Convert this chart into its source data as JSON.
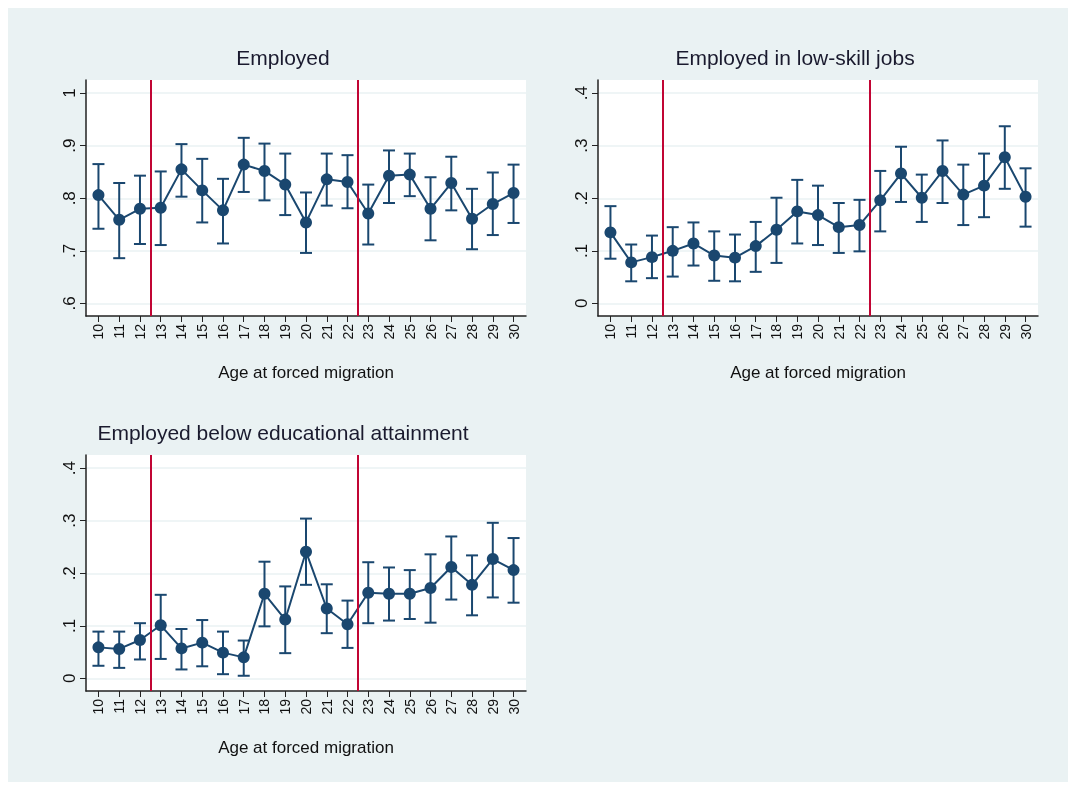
{
  "chart_data": [
    {
      "type": "line",
      "title": "Employed",
      "xlabel": "Age at forced migration",
      "color": "#1a476f",
      "marker": "circle",
      "grid": "y",
      "x": [
        10,
        11,
        12,
        13,
        14,
        15,
        16,
        17,
        18,
        19,
        20,
        21,
        22,
        23,
        24,
        25,
        26,
        27,
        28,
        29,
        30
      ],
      "values": [
        0.806,
        0.759,
        0.78,
        0.782,
        0.855,
        0.815,
        0.777,
        0.864,
        0.852,
        0.826,
        0.754,
        0.836,
        0.831,
        0.771,
        0.843,
        0.845,
        0.78,
        0.829,
        0.761,
        0.789,
        0.81
      ],
      "errors": [
        [
          0.742,
          0.865
        ],
        [
          0.686,
          0.829
        ],
        [
          0.713,
          0.843
        ],
        [
          0.711,
          0.851
        ],
        [
          0.803,
          0.903
        ],
        [
          0.754,
          0.875
        ],
        [
          0.714,
          0.837
        ],
        [
          0.812,
          0.915
        ],
        [
          0.796,
          0.904
        ],
        [
          0.768,
          0.885
        ],
        [
          0.696,
          0.811
        ],
        [
          0.786,
          0.885
        ],
        [
          0.781,
          0.882
        ],
        [
          0.712,
          0.826
        ],
        [
          0.791,
          0.891
        ],
        [
          0.804,
          0.885
        ],
        [
          0.72,
          0.84
        ],
        [
          0.777,
          0.879
        ],
        [
          0.703,
          0.818
        ],
        [
          0.73,
          0.849
        ],
        [
          0.753,
          0.864
        ]
      ],
      "ref_lines": [
        {
          "axis": "x",
          "value": 12.5,
          "color": "#c10534"
        },
        {
          "axis": "x",
          "value": 22.5,
          "color": "#c10534"
        }
      ],
      "xlim": [
        9.4,
        30.6
      ],
      "xticks": [
        10,
        11,
        12,
        13,
        14,
        15,
        16,
        17,
        18,
        19,
        20,
        21,
        22,
        23,
        24,
        25,
        26,
        27,
        28,
        29,
        30
      ],
      "ylim": [
        0.576,
        1.025
      ],
      "yticks": [
        {
          "value": 0.6,
          "label": ".6"
        },
        {
          "value": 0.7,
          "label": ".7"
        },
        {
          "value": 0.8,
          "label": ".8"
        },
        {
          "value": 0.9,
          "label": ".9"
        },
        {
          "value": 1,
          "label": "1"
        }
      ]
    },
    {
      "type": "line",
      "title": "Employed in low-skill jobs",
      "xlabel": "Age at forced migration",
      "color": "#1a476f",
      "marker": "circle",
      "grid": "y",
      "x": [
        10,
        11,
        12,
        13,
        14,
        15,
        16,
        17,
        18,
        19,
        20,
        21,
        22,
        23,
        24,
        25,
        26,
        27,
        28,
        29,
        30
      ],
      "values": [
        0.135,
        0.078,
        0.088,
        0.1,
        0.114,
        0.091,
        0.087,
        0.109,
        0.14,
        0.175,
        0.168,
        0.145,
        0.149,
        0.196,
        0.247,
        0.201,
        0.252,
        0.207,
        0.224,
        0.278,
        0.203
      ],
      "errors": [
        [
          0.085,
          0.185
        ],
        [
          0.042,
          0.112
        ],
        [
          0.048,
          0.129
        ],
        [
          0.051,
          0.145
        ],
        [
          0.072,
          0.154
        ],
        [
          0.043,
          0.137
        ],
        [
          0.042,
          0.131
        ],
        [
          0.06,
          0.155
        ],
        [
          0.077,
          0.201
        ],
        [
          0.114,
          0.235
        ],
        [
          0.111,
          0.224
        ],
        [
          0.096,
          0.191
        ],
        [
          0.099,
          0.197
        ],
        [
          0.137,
          0.252
        ],
        [
          0.193,
          0.298
        ],
        [
          0.155,
          0.245
        ],
        [
          0.191,
          0.31
        ],
        [
          0.149,
          0.264
        ],
        [
          0.164,
          0.285
        ],
        [
          0.218,
          0.337
        ],
        [
          0.146,
          0.257
        ]
      ],
      "ref_lines": [
        {
          "axis": "x",
          "value": 12.5,
          "color": "#c10534"
        },
        {
          "axis": "x",
          "value": 22.5,
          "color": "#c10534"
        }
      ],
      "xlim": [
        9.4,
        30.6
      ],
      "xticks": [
        10,
        11,
        12,
        13,
        14,
        15,
        16,
        17,
        18,
        19,
        20,
        21,
        22,
        23,
        24,
        25,
        26,
        27,
        28,
        29,
        30
      ],
      "ylim": [
        -0.024,
        0.425
      ],
      "yticks": [
        {
          "value": 0,
          "label": "0"
        },
        {
          "value": 0.1,
          "label": ".1"
        },
        {
          "value": 0.2,
          "label": ".2"
        },
        {
          "value": 0.3,
          "label": ".3"
        },
        {
          "value": 0.4,
          "label": ".4"
        }
      ]
    },
    {
      "type": "line",
      "title": "Employed below educational attainment",
      "xlabel": "Age at forced migration",
      "color": "#1a476f",
      "marker": "circle",
      "grid": "y",
      "x": [
        10,
        11,
        12,
        13,
        14,
        15,
        16,
        17,
        18,
        19,
        20,
        21,
        22,
        23,
        24,
        25,
        26,
        27,
        28,
        29,
        30
      ],
      "values": [
        0.059,
        0.056,
        0.073,
        0.101,
        0.057,
        0.068,
        0.049,
        0.04,
        0.161,
        0.112,
        0.241,
        0.133,
        0.103,
        0.163,
        0.161,
        0.161,
        0.172,
        0.212,
        0.178,
        0.227,
        0.206
      ],
      "errors": [
        [
          0.024,
          0.089
        ],
        [
          0.02,
          0.089
        ],
        [
          0.036,
          0.105
        ],
        [
          0.037,
          0.159
        ],
        [
          0.017,
          0.094
        ],
        [
          0.023,
          0.111
        ],
        [
          0.008,
          0.089
        ],
        [
          0.005,
          0.072
        ],
        [
          0.099,
          0.222
        ],
        [
          0.048,
          0.175
        ],
        [
          0.178,
          0.304
        ],
        [
          0.086,
          0.179
        ],
        [
          0.058,
          0.148
        ],
        [
          0.105,
          0.221
        ],
        [
          0.11,
          0.211
        ],
        [
          0.113,
          0.206
        ],
        [
          0.106,
          0.236
        ],
        [
          0.15,
          0.27
        ],
        [
          0.12,
          0.234
        ],
        [
          0.154,
          0.296
        ],
        [
          0.144,
          0.267
        ]
      ],
      "ref_lines": [
        {
          "axis": "x",
          "value": 12.5,
          "color": "#c10534"
        },
        {
          "axis": "x",
          "value": 22.5,
          "color": "#c10534"
        }
      ],
      "xlim": [
        9.4,
        30.6
      ],
      "xticks": [
        10,
        11,
        12,
        13,
        14,
        15,
        16,
        17,
        18,
        19,
        20,
        21,
        22,
        23,
        24,
        25,
        26,
        27,
        28,
        29,
        30
      ],
      "ylim": [
        -0.024,
        0.425
      ],
      "yticks": [
        {
          "value": 0,
          "label": "0"
        },
        {
          "value": 0.1,
          "label": ".1"
        },
        {
          "value": 0.2,
          "label": ".2"
        },
        {
          "value": 0.3,
          "label": ".3"
        },
        {
          "value": 0.4,
          "label": ".4"
        }
      ]
    }
  ]
}
